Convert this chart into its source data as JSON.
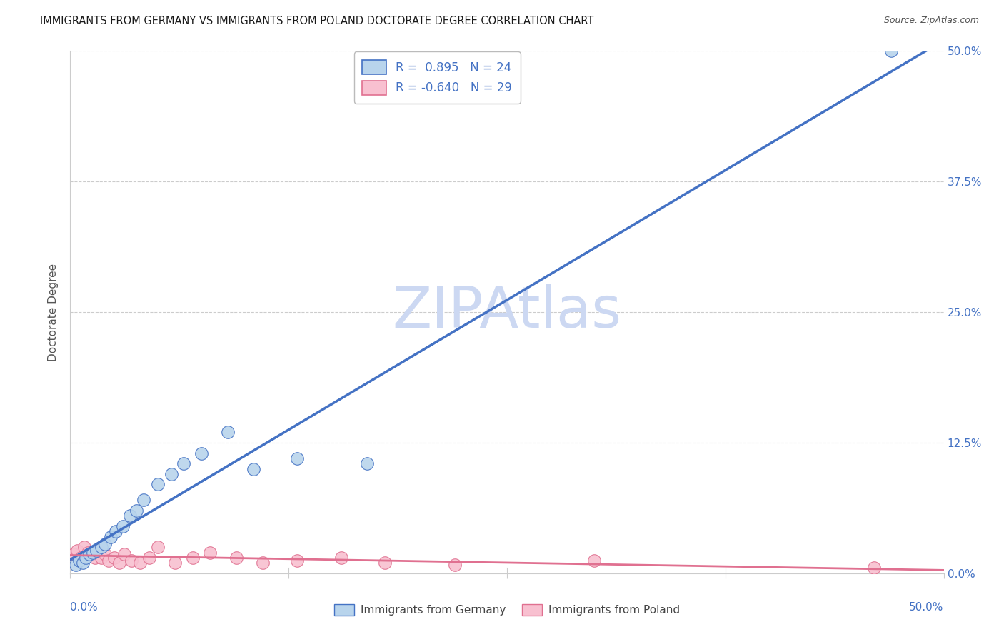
{
  "title": "IMMIGRANTS FROM GERMANY VS IMMIGRANTS FROM POLAND DOCTORATE DEGREE CORRELATION CHART",
  "source": "Source: ZipAtlas.com",
  "ylabel": "Doctorate Degree",
  "ytick_labels": [
    "0.0%",
    "12.5%",
    "25.0%",
    "37.5%",
    "50.0%"
  ],
  "ytick_values": [
    0.0,
    12.5,
    25.0,
    37.5,
    50.0
  ],
  "xtick_labels_bottom": [
    "0.0%",
    "50.0%"
  ],
  "xlim": [
    0.0,
    50.0
  ],
  "ylim": [
    0.0,
    50.0
  ],
  "germany_R": 0.895,
  "germany_N": 24,
  "poland_R": -0.64,
  "poland_N": 29,
  "germany_scatter_color": "#b8d4ec",
  "germany_line_color": "#4472c4",
  "poland_scatter_color": "#f8c0d0",
  "poland_line_color": "#e07090",
  "tick_color": "#4472c4",
  "watermark_text": "ZIPAtlas",
  "watermark_color": "#ccd8f2",
  "legend_label_germany": "Immigrants from Germany",
  "legend_label_poland": "Immigrants from Poland",
  "germany_x": [
    0.3,
    0.5,
    0.7,
    0.9,
    1.1,
    1.3,
    1.5,
    1.8,
    2.0,
    2.3,
    2.6,
    3.0,
    3.4,
    3.8,
    4.2,
    5.0,
    5.8,
    6.5,
    7.5,
    9.0,
    10.5,
    13.0,
    17.0,
    47.0
  ],
  "germany_y": [
    0.8,
    1.2,
    1.0,
    1.5,
    1.8,
    2.0,
    2.2,
    2.5,
    2.8,
    3.5,
    4.0,
    4.5,
    5.5,
    6.0,
    7.0,
    8.5,
    9.5,
    10.5,
    11.5,
    13.5,
    10.0,
    11.0,
    10.5,
    50.0
  ],
  "poland_x": [
    0.2,
    0.4,
    0.6,
    0.8,
    1.0,
    1.2,
    1.4,
    1.6,
    1.8,
    2.0,
    2.2,
    2.5,
    2.8,
    3.1,
    3.5,
    4.0,
    4.5,
    5.0,
    6.0,
    7.0,
    8.0,
    9.5,
    11.0,
    13.0,
    15.5,
    18.0,
    22.0,
    30.0,
    46.0
  ],
  "poland_y": [
    1.8,
    2.2,
    1.5,
    2.5,
    2.0,
    1.8,
    1.5,
    2.2,
    1.5,
    1.8,
    1.2,
    1.5,
    1.0,
    1.8,
    1.2,
    1.0,
    1.5,
    2.5,
    1.0,
    1.5,
    2.0,
    1.5,
    1.0,
    1.2,
    1.5,
    1.0,
    0.8,
    1.2,
    0.5
  ],
  "grid_color": "#cccccc",
  "spine_color": "#cccccc",
  "bg_color": "#ffffff"
}
